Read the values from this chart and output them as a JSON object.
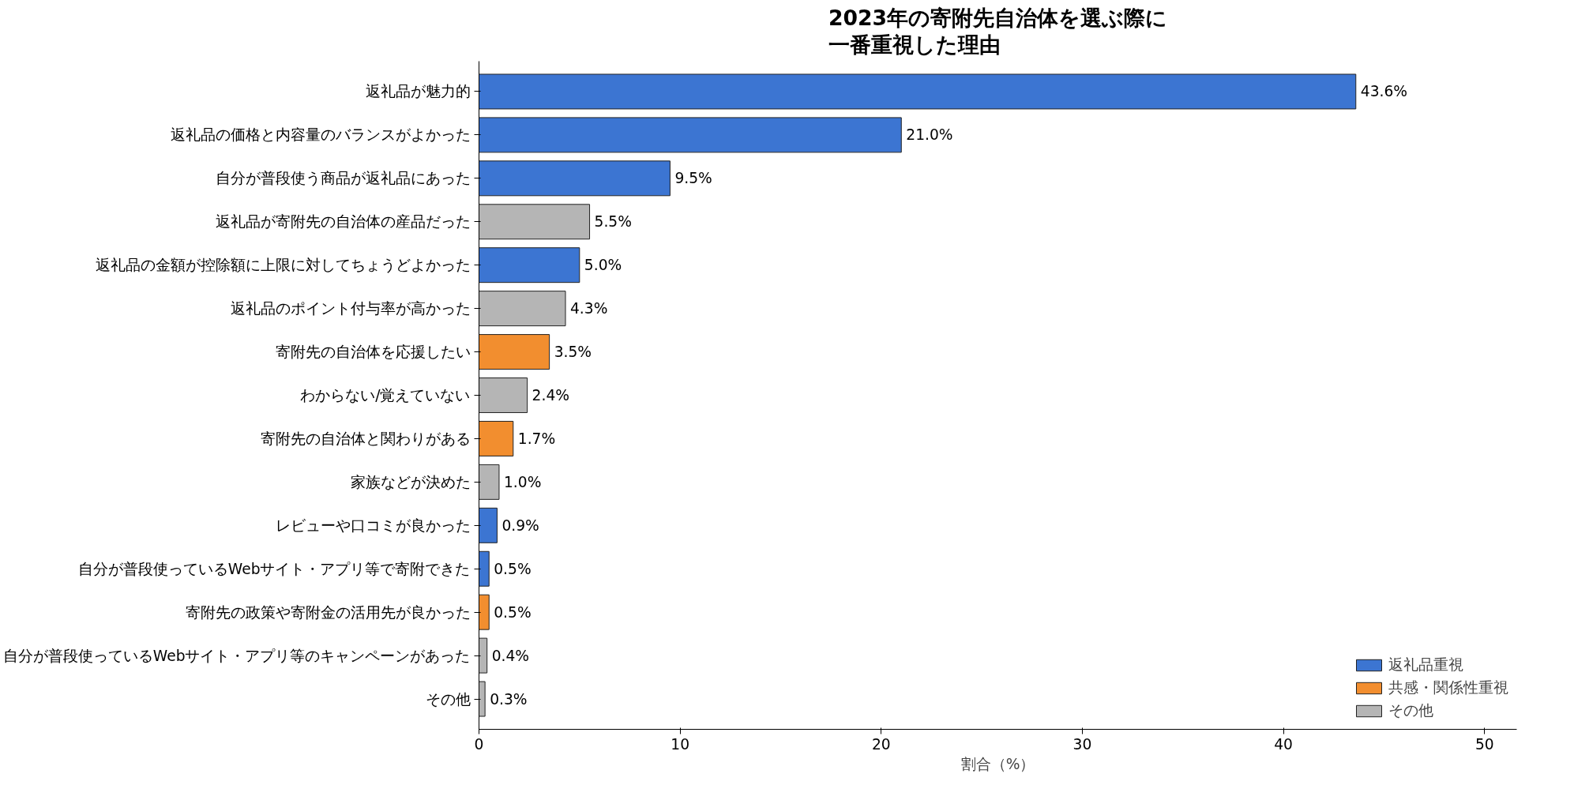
{
  "chart_data": {
    "type": "bar",
    "orientation": "horizontal",
    "stacked": true,
    "title": "2023年の寄附先自治体を選ぶ際に一番重視した理由",
    "xlabel": "割合（%）",
    "categories": [
      "返礼品が魅力的",
      "返礼品の価格と内容量のバランスがよかった",
      "自分が普段使う商品が返礼品にあった",
      "返礼品が寄附先の自治体の産品だった",
      "返礼品の金額が控除額に上限に対してちょうどよかった",
      "返礼品のポイント付与率が高かった",
      "寄附先の自治体を応援したい",
      "わからない/覚えていない",
      "寄附先の自治体と関わりがある",
      "家族などが決めた",
      "レビューや口コミが良かった",
      "自分が普段使っているWebサイト・アプリ等で寄附できた",
      "寄附先の政策や寄附金の活用先が良かった",
      "自分が普段使っているWebサイト・アプリ等のキャンペーンがあった",
      "その他"
    ],
    "series": [
      {
        "name": "返礼品重視",
        "color": "#3c75d2",
        "values": [
          43.6,
          21.0,
          9.5,
          null,
          5.0,
          null,
          null,
          null,
          null,
          null,
          0.9,
          0.5,
          null,
          null,
          null
        ],
        "value_labels": [
          "43.6%",
          "21.0%",
          "9.5%",
          null,
          "5.0%",
          null,
          null,
          null,
          null,
          null,
          "0.9%",
          "0.5%",
          null,
          null,
          null
        ]
      },
      {
        "name": "共感・関係性重視",
        "color": "#f28e2f",
        "values": [
          null,
          null,
          null,
          null,
          null,
          null,
          3.5,
          null,
          1.7,
          null,
          null,
          null,
          0.5,
          null,
          null
        ],
        "value_labels": [
          null,
          null,
          null,
          null,
          null,
          null,
          "3.5%",
          null,
          "1.7%",
          null,
          null,
          null,
          "0.5%",
          null,
          null
        ]
      },
      {
        "name": "その他",
        "color": "#b5b5b5",
        "values": [
          null,
          null,
          null,
          5.5,
          null,
          4.3,
          null,
          2.4,
          null,
          1.0,
          null,
          null,
          null,
          0.4,
          0.3
        ],
        "value_labels": [
          null,
          null,
          null,
          "5.5%",
          null,
          "4.3%",
          null,
          "2.4%",
          null,
          "1.0%",
          null,
          null,
          null,
          "0.4%",
          "0.3%"
        ]
      }
    ],
    "xlim": [
      0,
      51.6
    ],
    "xticks": [
      0,
      10,
      20,
      30,
      40,
      50
    ],
    "grid": false,
    "legend": "bottom right"
  }
}
